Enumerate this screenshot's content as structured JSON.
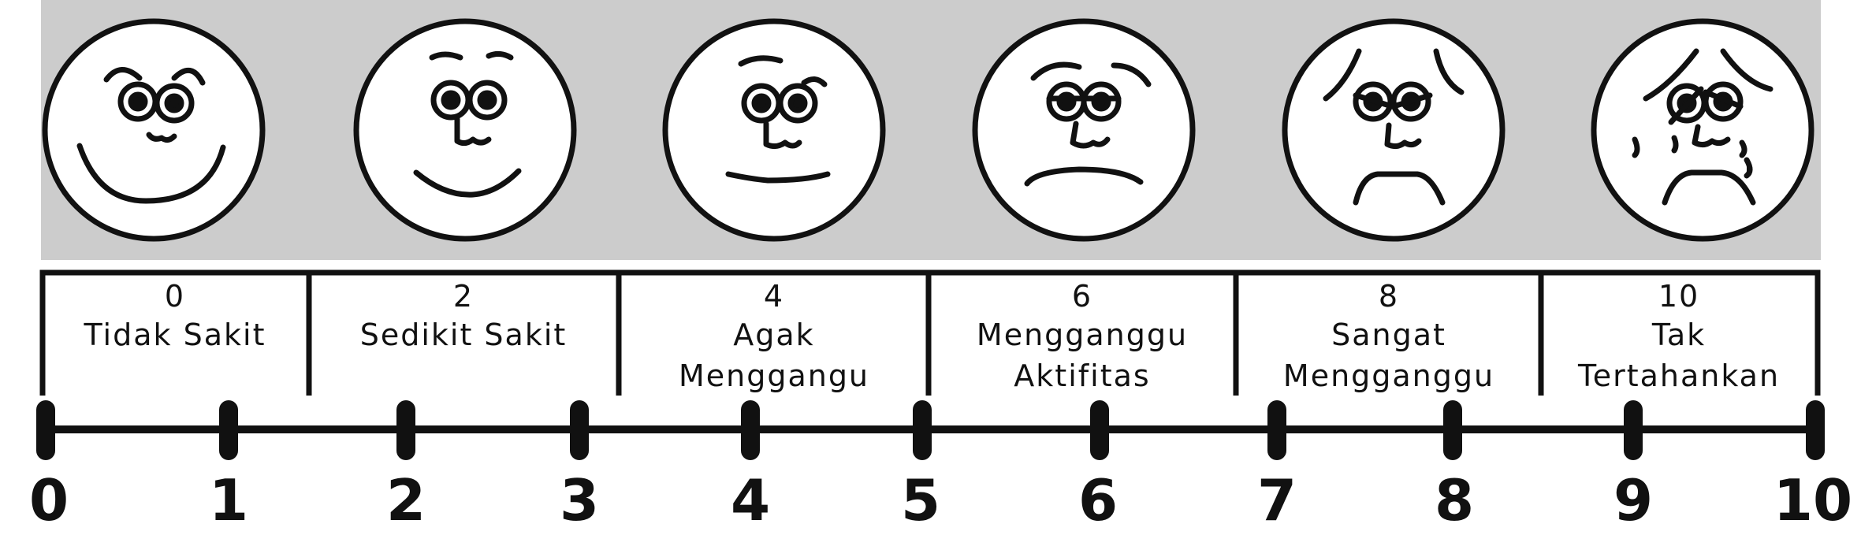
{
  "faces": [
    {
      "expression": "smiling-face",
      "score": "0",
      "label_lines": [
        "Tidak Sakit"
      ]
    },
    {
      "expression": "slight-smile-face",
      "score": "2",
      "label_lines": [
        "Sedikit Sakit"
      ]
    },
    {
      "expression": "neutral-face",
      "score": "4",
      "label_lines": [
        "Agak",
        "Menggangu"
      ]
    },
    {
      "expression": "frowning-face",
      "score": "6",
      "label_lines": [
        "Mengganggu",
        "Aktifitas"
      ]
    },
    {
      "expression": "distressed-face",
      "score": "8",
      "label_lines": [
        "Sangat",
        "Mengganggu"
      ]
    },
    {
      "expression": "crying-face",
      "score": "10",
      "label_lines": [
        "Tak",
        "Tertahankan"
      ]
    }
  ],
  "axis": {
    "ticks": [
      "0",
      "1",
      "2",
      "3",
      "4",
      "5",
      "6",
      "7",
      "8",
      "9",
      "10"
    ],
    "min": 0,
    "max": 10
  },
  "colors": {
    "face_band_background": "#cccccc",
    "face_fill": "#ffffff",
    "stroke": "#111111"
  }
}
